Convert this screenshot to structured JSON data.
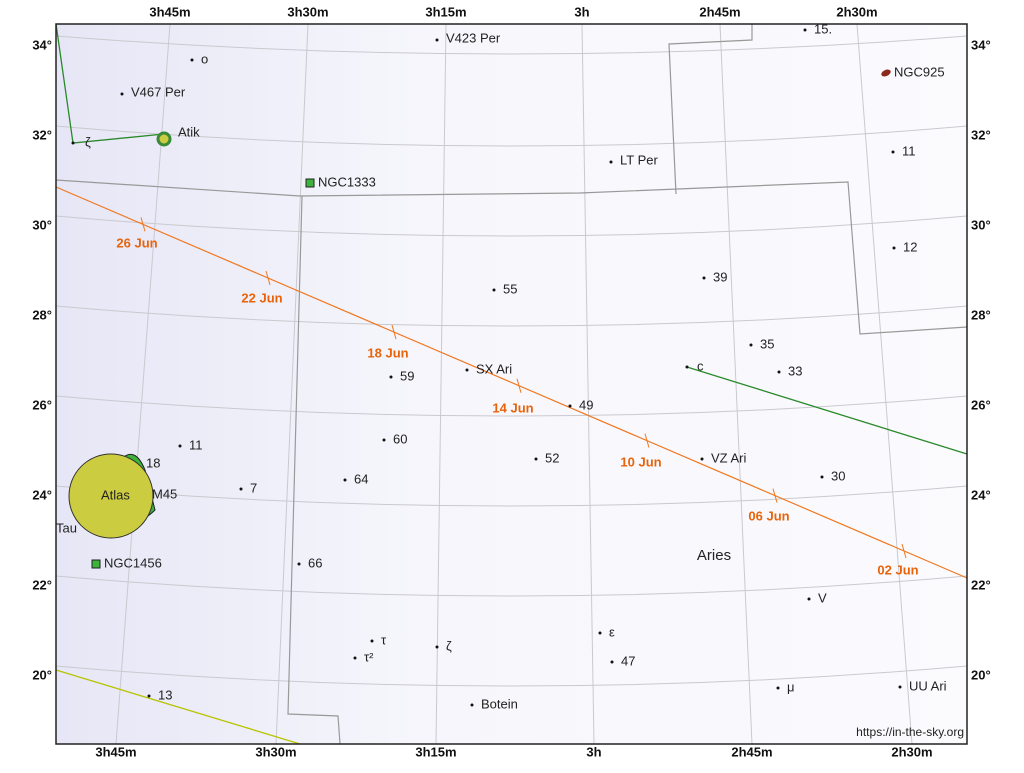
{
  "ra_labels_top": [
    "3h45m",
    "3h30m",
    "3h15m",
    "3h",
    "2h45m",
    "2h30m"
  ],
  "ra_labels_bottom": [
    "3h45m",
    "3h30m",
    "3h15m",
    "3h",
    "2h45m",
    "2h30m"
  ],
  "dec_labels_left": [
    "34°",
    "32°",
    "30°",
    "28°",
    "26°",
    "24°",
    "22°",
    "20°"
  ],
  "dec_labels_right": [
    "34°",
    "32°",
    "30°",
    "28°",
    "26°",
    "24°",
    "22°",
    "20°"
  ],
  "ecliptic_dates": [
    "26 Jun",
    "22 Jun",
    "18 Jun",
    "14 Jun",
    "10 Jun",
    "06 Jun",
    "02 Jun"
  ],
  "objects": [
    "V423 Per",
    "o",
    "V467 Per",
    "Atik",
    "ζ",
    "NGC1333",
    "LT Per",
    "NGC925",
    "15.",
    "11",
    "12",
    "39",
    "55",
    "35",
    "c",
    "33",
    "SX Ari",
    "59",
    "49",
    "60",
    "11",
    "18",
    "52",
    "VZ Ari",
    "64",
    "30",
    "7",
    "M45",
    "Atlas",
    "Tau",
    "NGC1456",
    "66",
    "τ",
    "ζ",
    "ε",
    "τ²",
    "47",
    "μ",
    "UU Ari",
    "13",
    "Botein",
    "V"
  ],
  "constellation": "Aries",
  "credit": "https://in-the-sky.org"
}
